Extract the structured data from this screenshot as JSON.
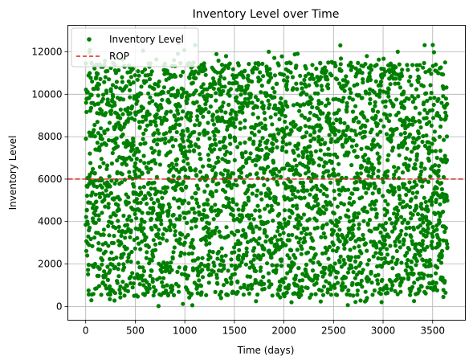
{
  "chart_data": {
    "type": "scatter",
    "title": "Inventory Level over Time",
    "xlabel": "Time (days)",
    "ylabel": "Inventory Level",
    "xlim": [
      -180,
      3830
    ],
    "ylim": [
      -650,
      13250
    ],
    "xticks": [
      0,
      500,
      1000,
      1500,
      2000,
      2500,
      3000,
      3500
    ],
    "yticks": [
      0,
      2000,
      4000,
      6000,
      8000,
      10000,
      12000
    ],
    "grid": true,
    "legend_position": "top-left",
    "colors": {
      "points": "#008000",
      "rop": "#d62728"
    },
    "series": [
      {
        "name": "Inventory Level",
        "marker": "dot",
        "color": "#008000",
        "x_start": 0,
        "x_step": 1,
        "count": 3650,
        "y_min": 0,
        "y_max": 12600,
        "approx_distribution": "roughly uniform between ~500 and ~11500 with scattered extremes near 0 and 12600"
      },
      {
        "name": "ROP",
        "type": "hline",
        "style": "dashed",
        "color": "#d62728",
        "y": 6000
      }
    ]
  }
}
